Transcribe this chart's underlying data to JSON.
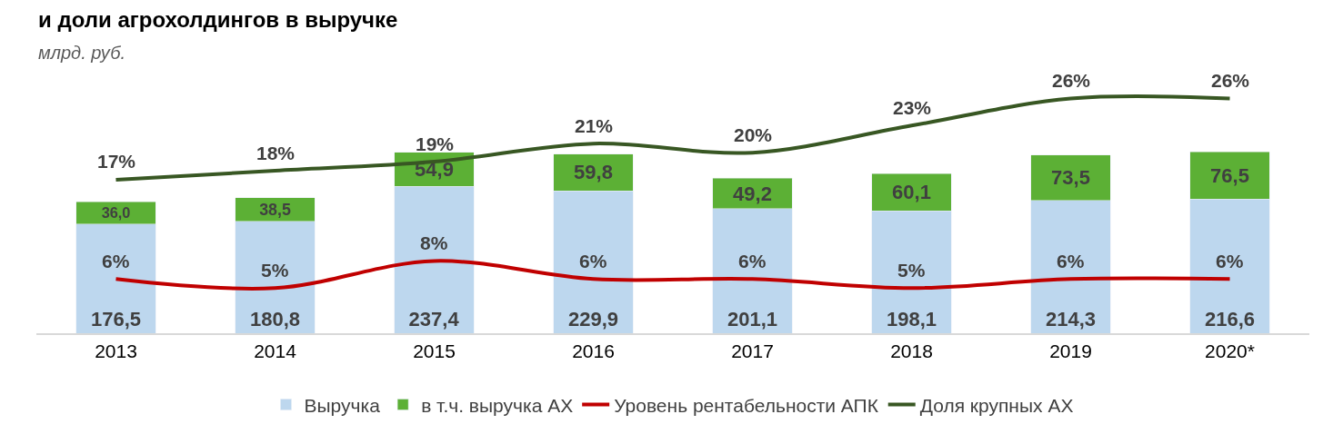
{
  "chart_data": {
    "type": "bar",
    "stacked": true,
    "title": "и доли агрохолдингов в выручке",
    "subtitle": "млрд. руб.",
    "categories": [
      "2013",
      "2014",
      "2015",
      "2016",
      "2017",
      "2018",
      "2019",
      "2020*"
    ],
    "series": [
      {
        "name": "Выручка",
        "color": "#bdd7ee",
        "values": [
          176.5,
          180.8,
          237.4,
          229.9,
          201.1,
          198.1,
          214.3,
          216.6
        ],
        "value_labels": [
          "176,5",
          "180,8",
          "237,4",
          "229,9",
          "201,1",
          "198,1",
          "214,3",
          "216,6"
        ]
      },
      {
        "name": "в т.ч. выручка АХ",
        "color": "#5cb035",
        "values": [
          36.0,
          38.5,
          54.9,
          59.8,
          49.2,
          60.1,
          73.5,
          76.5
        ],
        "value_labels": [
          "36,0",
          "38,5",
          "54,9",
          "59,8",
          "49,2",
          "60,1",
          "73,5",
          "76,5"
        ]
      },
      {
        "name": "Уровень рентабельности АПК",
        "type": "line",
        "axis": "y2",
        "color": "#c00000",
        "values": [
          6,
          5,
          8,
          6,
          6,
          5,
          6,
          6
        ],
        "value_labels": [
          "6%",
          "5%",
          "8%",
          "6%",
          "6%",
          "5%",
          "6%",
          "6%"
        ]
      },
      {
        "name": "Доля крупных АХ",
        "type": "line",
        "axis": "y2",
        "color": "#385723",
        "values": [
          17,
          18,
          19,
          21,
          20,
          23,
          26,
          26
        ],
        "value_labels": [
          "17%",
          "18%",
          "19%",
          "21%",
          "20%",
          "23%",
          "26%",
          "26%"
        ]
      }
    ],
    "tick_labels": "x",
    "legend": "bottom",
    "marker": "none"
  }
}
